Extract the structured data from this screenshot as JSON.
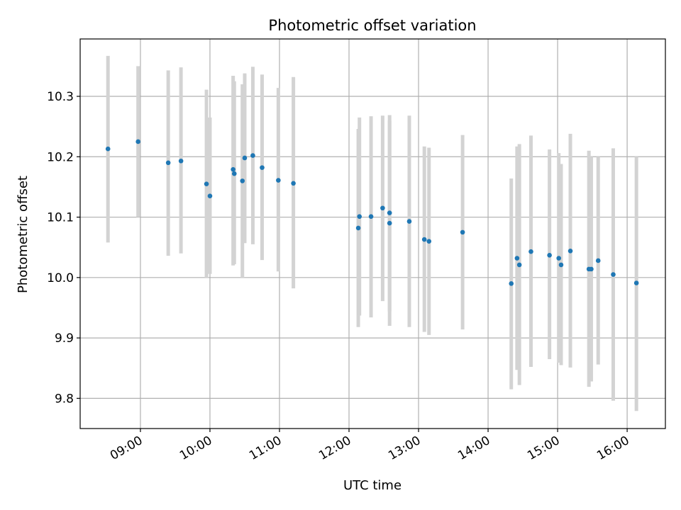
{
  "chart_data": {
    "type": "scatter",
    "title": "Photometric offset variation",
    "xlabel": "UTC time",
    "ylabel": "Photometric offset",
    "grid": true,
    "legend": "none",
    "xlim": [
      "08:08",
      "16:33"
    ],
    "ylim": [
      9.75,
      10.395
    ],
    "x_ticks": [
      "09:00",
      "10:00",
      "11:00",
      "12:00",
      "13:00",
      "14:00",
      "15:00",
      "16:00"
    ],
    "y_ticks": [
      "9.8",
      "9.9",
      "10.0",
      "10.1",
      "10.2",
      "10.3"
    ],
    "colors": {
      "point": "#1f77b4",
      "errorbar": "#d3d3d3",
      "grid": "#b0b0b0"
    },
    "series": [
      {
        "points": [
          {
            "x": "08:32",
            "y": 10.213,
            "lo": 10.058,
            "hi": 10.367
          },
          {
            "x": "08:58",
            "y": 10.225,
            "lo": 10.1,
            "hi": 10.35
          },
          {
            "x": "09:24",
            "y": 10.19,
            "lo": 10.036,
            "hi": 10.343
          },
          {
            "x": "09:35",
            "y": 10.193,
            "lo": 10.04,
            "hi": 10.348
          },
          {
            "x": "09:57",
            "y": 10.155,
            "lo": 10.0,
            "hi": 10.311
          },
          {
            "x": "10:00",
            "y": 10.135,
            "lo": 10.006,
            "hi": 10.265
          },
          {
            "x": "10:20",
            "y": 10.179,
            "lo": 10.02,
            "hi": 10.334
          },
          {
            "x": "10:21",
            "y": 10.172,
            "lo": 10.022,
            "hi": 10.325
          },
          {
            "x": "10:28",
            "y": 10.16,
            "lo": 10.0,
            "hi": 10.32
          },
          {
            "x": "10:30",
            "y": 10.198,
            "lo": 10.057,
            "hi": 10.338
          },
          {
            "x": "10:37",
            "y": 10.202,
            "lo": 10.055,
            "hi": 10.349
          },
          {
            "x": "10:45",
            "y": 10.182,
            "lo": 10.029,
            "hi": 10.336
          },
          {
            "x": "10:59",
            "y": 10.161,
            "lo": 10.01,
            "hi": 10.314
          },
          {
            "x": "11:12",
            "y": 10.156,
            "lo": 9.982,
            "hi": 10.332
          },
          {
            "x": "12:08",
            "y": 10.082,
            "lo": 9.918,
            "hi": 10.246
          },
          {
            "x": "12:09",
            "y": 10.101,
            "lo": 9.937,
            "hi": 10.265
          },
          {
            "x": "12:19",
            "y": 10.101,
            "lo": 9.934,
            "hi": 10.267
          },
          {
            "x": "12:29",
            "y": 10.115,
            "lo": 9.961,
            "hi": 10.268
          },
          {
            "x": "12:35",
            "y": 10.107,
            "lo": 9.944,
            "hi": 10.269
          },
          {
            "x": "12:35",
            "y": 10.09,
            "lo": 9.92,
            "hi": 10.26
          },
          {
            "x": "12:52",
            "y": 10.093,
            "lo": 9.918,
            "hi": 10.268
          },
          {
            "x": "13:05",
            "y": 10.063,
            "lo": 9.91,
            "hi": 10.217
          },
          {
            "x": "13:09",
            "y": 10.06,
            "lo": 9.905,
            "hi": 10.215
          },
          {
            "x": "13:38",
            "y": 10.075,
            "lo": 9.914,
            "hi": 10.236
          },
          {
            "x": "14:20",
            "y": 9.99,
            "lo": 9.815,
            "hi": 10.164
          },
          {
            "x": "14:25",
            "y": 10.032,
            "lo": 9.847,
            "hi": 10.217
          },
          {
            "x": "14:27",
            "y": 10.021,
            "lo": 9.822,
            "hi": 10.221
          },
          {
            "x": "14:37",
            "y": 10.043,
            "lo": 9.852,
            "hi": 10.235
          },
          {
            "x": "14:53",
            "y": 10.037,
            "lo": 9.865,
            "hi": 10.212
          },
          {
            "x": "15:01",
            "y": 10.032,
            "lo": 9.859,
            "hi": 10.206
          },
          {
            "x": "15:03",
            "y": 10.021,
            "lo": 9.855,
            "hi": 10.188
          },
          {
            "x": "15:11",
            "y": 10.044,
            "lo": 9.851,
            "hi": 10.238
          },
          {
            "x": "15:27",
            "y": 10.014,
            "lo": 9.819,
            "hi": 10.21
          },
          {
            "x": "15:29",
            "y": 10.014,
            "lo": 9.828,
            "hi": 10.2
          },
          {
            "x": "15:35",
            "y": 10.028,
            "lo": 9.856,
            "hi": 10.2
          },
          {
            "x": "15:48",
            "y": 10.005,
            "lo": 9.796,
            "hi": 10.214
          },
          {
            "x": "16:08",
            "y": 9.991,
            "lo": 9.779,
            "hi": 10.2
          }
        ]
      }
    ]
  }
}
